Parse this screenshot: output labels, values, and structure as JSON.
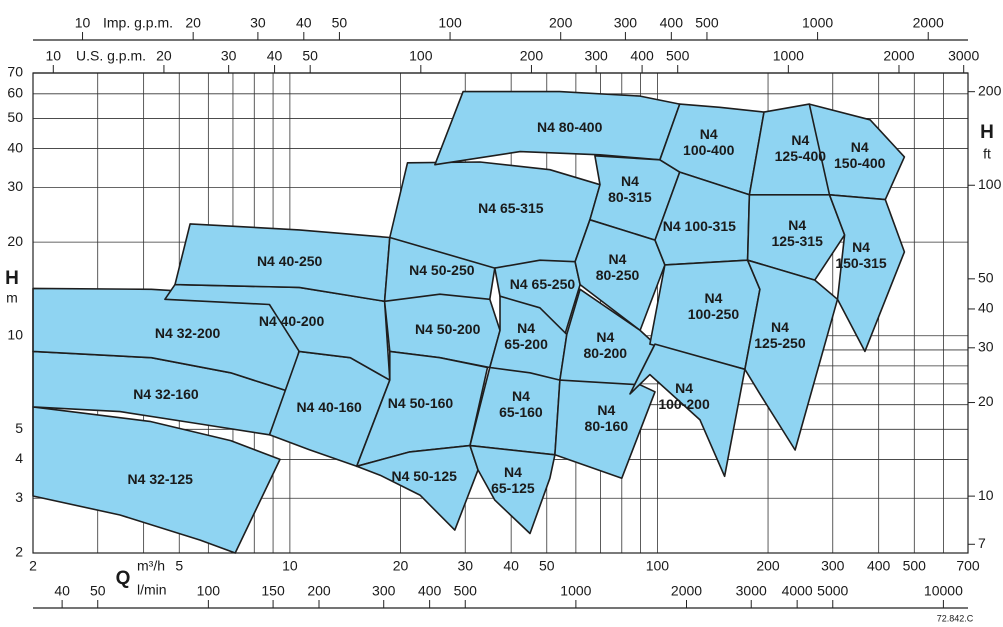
{
  "chart_data": {
    "type": "region",
    "xlabel": "Q",
    "xunit": "m³/h",
    "x2unit": "l/min",
    "x3label": "U.S. g.p.m.",
    "x4label": "Imp. g.p.m.",
    "ylabel": "H",
    "yunit": "m",
    "y2label": "H",
    "y2unit": "ft",
    "note": "72.842.C",
    "xscale": "log",
    "yscale": "log",
    "xlim": [
      2,
      700
    ],
    "xticks": [
      2,
      5,
      10,
      20,
      30,
      40,
      50,
      100,
      200,
      300,
      400,
      500,
      700
    ],
    "xgrid": [
      2,
      3,
      4,
      5,
      6,
      7,
      8,
      9,
      10,
      20,
      30,
      40,
      50,
      60,
      70,
      80,
      90,
      100,
      200,
      300,
      400,
      500,
      600,
      700
    ],
    "ylim": [
      2,
      70
    ],
    "yticks": [
      2,
      3,
      4,
      5,
      10,
      20,
      30,
      40,
      50,
      60,
      70
    ],
    "ygrid": [
      2,
      3,
      4,
      5,
      6,
      7,
      8,
      9,
      10,
      20,
      30,
      40,
      50,
      60,
      70
    ],
    "y2lim": [
      6.562,
      229.66
    ],
    "y2ticks": [
      7,
      10,
      20,
      30,
      40,
      50,
      100,
      200
    ],
    "x2lim": [
      33.33,
      11666.7
    ],
    "x2ticks": [
      40,
      50,
      100,
      150,
      200,
      300,
      400,
      500,
      1000,
      2000,
      3000,
      4000,
      5000,
      10000
    ],
    "x3lim": [
      8.806,
      3082
    ],
    "x3ticks": [
      10,
      20,
      30,
      40,
      50,
      100,
      200,
      300,
      400,
      500,
      1000,
      2000,
      3000
    ],
    "x4lim": [
      7.332,
      2566
    ],
    "x4ticks": [
      10,
      20,
      30,
      40,
      50,
      100,
      200,
      300,
      400,
      500,
      1000,
      2000
    ],
    "color": "#8fd4f2",
    "edge_color": "#1e1e1e",
    "regions": [
      {
        "name": "N4 32-125",
        "q": [
          2,
          4.16,
          6.9,
          9.4,
          7.1,
          5.7,
          3.45,
          2
        ],
        "h": [
          5.9,
          5.3,
          4.6,
          4,
          2,
          2.2,
          2.65,
          3.05
        ]
      },
      {
        "name": "N4 32-160",
        "q": [
          2,
          4.2,
          6.9,
          10,
          8.8,
          5.7,
          3.45,
          2
        ],
        "h": [
          8.9,
          8.5,
          7.6,
          6.6,
          4.8,
          5.2,
          5.7,
          5.9
        ]
      },
      {
        "name": "N4 32-200",
        "q": [
          2,
          4.2,
          6.9,
          8.8,
          10.6,
          10,
          6.9,
          4.2,
          2
        ],
        "h": [
          14.2,
          14.1,
          13.6,
          12.6,
          9,
          6.6,
          7.6,
          8.5,
          8.9
        ]
      },
      {
        "name": "N4 40-160",
        "q": [
          10.6,
          14.6,
          18.7,
          15.2,
          11.3,
          8.8
        ],
        "h": [
          8.9,
          8.5,
          7.2,
          3.8,
          4.3,
          4.8
        ]
      },
      {
        "name": "N4 40-200",
        "q": [
          4.87,
          10.6,
          18.1,
          18.7,
          14.6,
          10.6,
          8.8,
          4.57
        ],
        "h": [
          14.6,
          14.3,
          12.9,
          7.2,
          8.5,
          8.9,
          12.6,
          13.1
        ]
      },
      {
        "name": "N4 40-250",
        "q": [
          5.35,
          10.6,
          18.7,
          18.1,
          10.6,
          4.87
        ],
        "h": [
          22.9,
          21.9,
          20.7,
          12.9,
          14.3,
          14.6
        ]
      },
      {
        "name": "N4 50-250",
        "q": [
          18.7,
          27.3,
          36.1,
          35,
          18.1
        ],
        "h": [
          20.7,
          19.6,
          16.5,
          13.1,
          12.9
        ]
      },
      {
        "name": "N4 50-200",
        "q": [
          18.1,
          25.6,
          35,
          37.3,
          35,
          25.6,
          18.7
        ],
        "h": [
          12.9,
          13.6,
          13.1,
          10.4,
          7.9,
          8.5,
          8.9
        ]
      },
      {
        "name": "N4 50-160",
        "q": [
          18.7,
          25.6,
          34.5,
          30.9,
          21.2,
          15.2,
          18.7
        ],
        "h": [
          8.9,
          8.5,
          7.9,
          4.43,
          4.23,
          3.8,
          7.2
        ]
      },
      {
        "name": "N4 50-125",
        "q": [
          15.2,
          21.2,
          30.9,
          32.5,
          28.1,
          22.6,
          17.6
        ],
        "h": [
          3.8,
          4.23,
          4.43,
          3.7,
          2.37,
          3.07,
          3.56
        ]
      },
      {
        "name": "N4 65-315",
        "q": [
          20.9,
          32.9,
          51,
          69.8,
          65.5,
          59.7,
          36.1,
          18.7
        ],
        "h": [
          36,
          36.2,
          34.2,
          30.6,
          23.6,
          17.3,
          16.5,
          20.7
        ]
      },
      {
        "name": "N4 65-250",
        "q": [
          36.1,
          47.9,
          59.7,
          61.6,
          56,
          37.3
        ],
        "h": [
          16.5,
          17.5,
          17.3,
          14.6,
          10.1,
          13.4
        ]
      },
      {
        "name": "N4\n65-200",
        "q": [
          37.3,
          47.9,
          56.7,
          54.3,
          35,
          37.3
        ],
        "h": [
          13.4,
          12.3,
          10.1,
          7.2,
          7.9,
          10.4
        ]
      },
      {
        "name": "N4\n65-160",
        "q": [
          35,
          45,
          54.3,
          52.6,
          30.9
        ],
        "h": [
          7.9,
          7.6,
          7.2,
          4.14,
          4.43
        ]
      },
      {
        "name": "N4\n65-125",
        "q": [
          30.9,
          52.6,
          51,
          45,
          36.1,
          32.5
        ],
        "h": [
          4.43,
          4.14,
          3.48,
          2.31,
          2.96,
          3.7
        ]
      },
      {
        "name": "N4 80-400",
        "q": [
          24.8,
          29.6,
          54.2,
          89.7,
          115,
          101.6,
          69.8,
          42.3
        ],
        "h": [
          35.5,
          61,
          61,
          59,
          55.6,
          36.8,
          38.2,
          39.1
        ]
      },
      {
        "name": "N4\n80-315",
        "q": [
          67.6,
          101.6,
          115,
          98.5,
          65.5,
          69.8
        ],
        "h": [
          37.9,
          36.8,
          33.6,
          20.3,
          23.6,
          30.6
        ]
      },
      {
        "name": "N4\n80-250",
        "q": [
          65.5,
          98.5,
          104.8,
          89.7,
          61.6,
          59.7
        ],
        "h": [
          23.6,
          20.3,
          16.9,
          10.4,
          14.6,
          17.3
        ]
      },
      {
        "name": "N4\n80-200",
        "q": [
          61.6,
          89.7,
          98.5,
          84.2,
          54.3,
          56.7
        ],
        "h": [
          14.1,
          10.4,
          9.4,
          6.5,
          7.2,
          10.1
        ]
      },
      {
        "name": "N4\n80-160",
        "q": [
          54.3,
          89.7,
          98.5,
          80,
          52.6
        ],
        "h": [
          7.2,
          6.95,
          6.6,
          3.48,
          4.14
        ]
      },
      {
        "name": "N4\n100-400",
        "q": [
          115,
          147.7,
          195,
          178,
          115,
          101.6
        ],
        "h": [
          55.6,
          54.3,
          52.4,
          28.4,
          33.6,
          36.8
        ]
      },
      {
        "name": "N4 100-315",
        "q": [
          115,
          178,
          176,
          104.8,
          98.5
        ],
        "h": [
          33.6,
          28.4,
          17.5,
          16.9,
          20.3
        ]
      },
      {
        "name": "N4\n100-250",
        "q": [
          104.8,
          176,
          190,
          173,
          95.4
        ],
        "h": [
          16.9,
          17.5,
          14.1,
          7.8,
          9.4
        ]
      },
      {
        "name": "N4\n100-200",
        "q": [
          98.5,
          173,
          152.3,
          130.6,
          95.4,
          84.2
        ],
        "h": [
          9.4,
          7.8,
          3.53,
          5.36,
          7.5,
          6.5
        ]
      },
      {
        "name": "N4\n125-400",
        "q": [
          195,
          259,
          333,
          294,
          178
        ],
        "h": [
          52.4,
          55.6,
          44.2,
          28.4,
          28.4
        ]
      },
      {
        "name": "N4\n125-315",
        "q": [
          178,
          294,
          323,
          268,
          176
        ],
        "h": [
          28.4,
          28.4,
          21.1,
          15.1,
          17.5
        ]
      },
      {
        "name": "N4\n125-250",
        "q": [
          176,
          268,
          309,
          237,
          190,
          173,
          190
        ],
        "h": [
          17.5,
          15.1,
          13.1,
          4.29,
          6.5,
          7.8,
          14.1
        ]
      },
      {
        "name": "N4\n150-400",
        "q": [
          259,
          379,
          470,
          417,
          294
        ],
        "h": [
          55.6,
          49.5,
          37.6,
          27.4,
          28.4
        ]
      },
      {
        "name": "N4\n150-315",
        "q": [
          294,
          417,
          470,
          367,
          309,
          323
        ],
        "h": [
          28.4,
          27.4,
          18.6,
          8.9,
          13.1,
          21.1
        ]
      }
    ]
  }
}
